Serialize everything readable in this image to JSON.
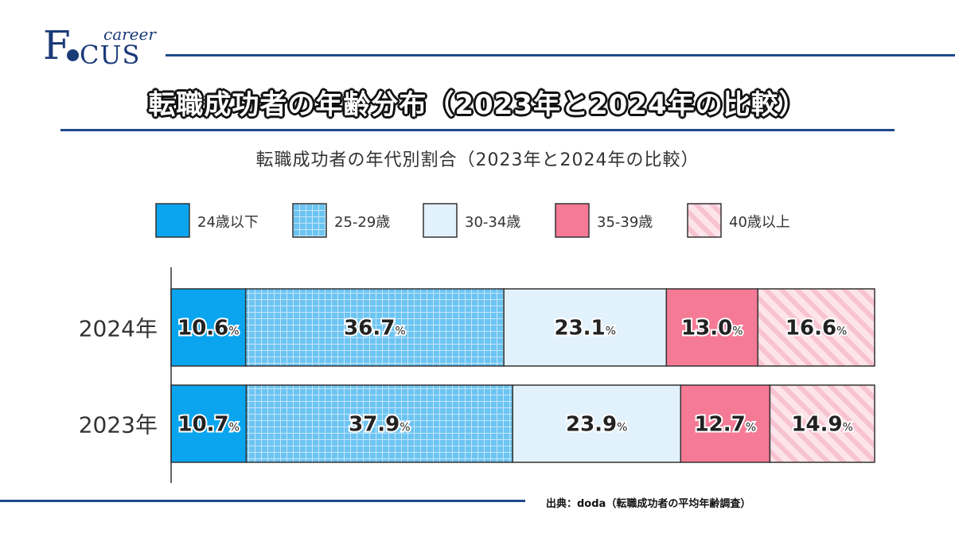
{
  "logo": {
    "f": "F",
    "cus": "CUS",
    "career": "career"
  },
  "title": "転職成功者の年齢分布（2023年と2024年の比較）",
  "source": "出典：doda（転職成功者の平均年齢調査）",
  "colors": {
    "rule": "#1e4a8c",
    "under24": "#0aa5ee",
    "age25_29": "#6cc4f2",
    "age30_34": "#e2f2fc",
    "age35_39": "#f57a95",
    "over40": "#fde3ea"
  },
  "chart_data": {
    "type": "bar",
    "orientation": "horizontal",
    "stacked": true,
    "title": "転職成功者の年代別割合（2023年と2024年の比較）",
    "categories": [
      "2024年",
      "2023年"
    ],
    "unit": "%",
    "legend_position": "top",
    "series": [
      {
        "name": "24歳以下",
        "values": [
          10.6,
          10.7
        ],
        "labels": [
          "10.6",
          "10.7"
        ]
      },
      {
        "name": "25-29歳",
        "values": [
          36.7,
          37.9
        ],
        "labels": [
          "36.7",
          "37.9"
        ]
      },
      {
        "name": "30-34歳",
        "values": [
          23.1,
          23.9
        ],
        "labels": [
          "23.1",
          "23.9"
        ]
      },
      {
        "name": "35-39歳",
        "values": [
          13.0,
          12.7
        ],
        "labels": [
          "13.0",
          "12.7"
        ]
      },
      {
        "name": "40歳以上",
        "values": [
          16.6,
          14.9
        ],
        "labels": [
          "16.6",
          "14.9"
        ]
      }
    ]
  }
}
